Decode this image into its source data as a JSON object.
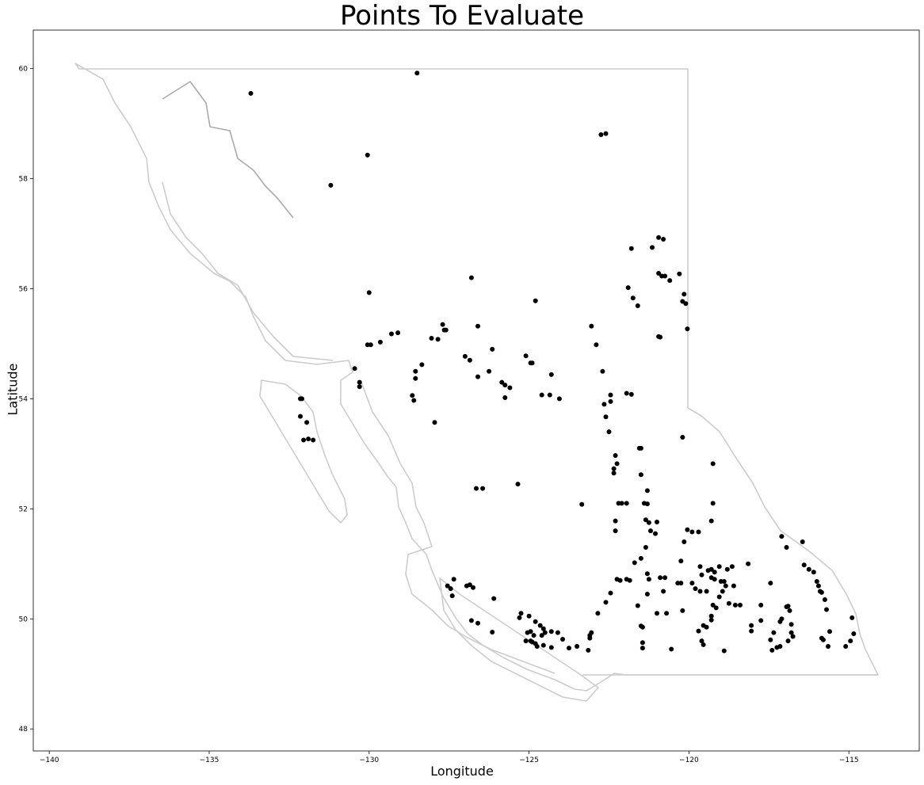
{
  "chart_data": {
    "type": "scatter",
    "title": "Points To Evaluate",
    "xlabel": "Longitude",
    "ylabel": "Latitude",
    "xlim": [
      -140.5,
      -112.8
    ],
    "ylim": [
      47.6,
      60.7
    ],
    "xticks": [
      -140,
      -135,
      -130,
      -125,
      -120,
      -115
    ],
    "yticks": [
      48,
      50,
      52,
      54,
      56,
      58,
      60
    ],
    "grid": false,
    "marker_color": "#000000",
    "basemap_color": "#cccccc",
    "points": [
      [
        -133.7,
        59.55
      ],
      [
        -128.5,
        59.92
      ],
      [
        -130.05,
        58.43
      ],
      [
        -131.2,
        57.88
      ],
      [
        -122.75,
        58.8
      ],
      [
        -122.6,
        58.82
      ],
      [
        -130.0,
        55.93
      ],
      [
        -129.95,
        54.98
      ],
      [
        -130.05,
        54.98
      ],
      [
        -129.65,
        55.03
      ],
      [
        -129.3,
        55.18
      ],
      [
        -129.1,
        55.2
      ],
      [
        -130.45,
        54.55
      ],
      [
        -130.3,
        54.3
      ],
      [
        -130.3,
        54.22
      ],
      [
        -132.15,
        54.0
      ],
      [
        -132.1,
        54.0
      ],
      [
        -132.15,
        53.68
      ],
      [
        -131.95,
        53.57
      ],
      [
        -132.05,
        53.25
      ],
      [
        -131.9,
        53.27
      ],
      [
        -131.75,
        53.25
      ],
      [
        -128.6,
        53.97
      ],
      [
        -128.65,
        54.06
      ],
      [
        -128.55,
        54.37
      ],
      [
        -128.55,
        54.5
      ],
      [
        -128.35,
        54.62
      ],
      [
        -127.95,
        53.57
      ],
      [
        -128.05,
        55.1
      ],
      [
        -127.85,
        55.08
      ],
      [
        -127.7,
        55.35
      ],
      [
        -127.65,
        55.25
      ],
      [
        -127.6,
        55.25
      ],
      [
        -127.0,
        54.77
      ],
      [
        -126.85,
        54.7
      ],
      [
        -126.8,
        56.2
      ],
      [
        -126.6,
        55.32
      ],
      [
        -126.6,
        54.4
      ],
      [
        -126.25,
        54.5
      ],
      [
        -126.15,
        54.9
      ],
      [
        -125.85,
        54.3
      ],
      [
        -125.75,
        54.25
      ],
      [
        -125.6,
        54.2
      ],
      [
        -125.75,
        54.02
      ],
      [
        -125.1,
        54.78
      ],
      [
        -124.95,
        54.65
      ],
      [
        -124.9,
        54.65
      ],
      [
        -124.8,
        55.78
      ],
      [
        -124.6,
        54.07
      ],
      [
        -124.35,
        54.07
      ],
      [
        -124.3,
        54.44
      ],
      [
        -124.05,
        54.0
      ],
      [
        -125.35,
        52.45
      ],
      [
        -126.65,
        52.37
      ],
      [
        -126.45,
        52.37
      ],
      [
        -123.35,
        52.08
      ],
      [
        -123.05,
        55.32
      ],
      [
        -122.9,
        54.98
      ],
      [
        -122.7,
        54.5
      ],
      [
        -122.65,
        53.9
      ],
      [
        -122.6,
        53.67
      ],
      [
        -122.45,
        53.95
      ],
      [
        -122.45,
        54.07
      ],
      [
        -122.5,
        53.4
      ],
      [
        -122.3,
        52.97
      ],
      [
        -122.35,
        52.73
      ],
      [
        -122.35,
        52.65
      ],
      [
        -122.25,
        52.82
      ],
      [
        -121.9,
        56.02
      ],
      [
        -121.8,
        56.73
      ],
      [
        -121.75,
        55.83
      ],
      [
        -121.6,
        55.69
      ],
      [
        -121.55,
        53.1
      ],
      [
        -121.5,
        53.1
      ],
      [
        -121.5,
        52.62
      ],
      [
        -121.3,
        52.33
      ],
      [
        -121.4,
        52.1
      ],
      [
        -121.3,
        52.09
      ],
      [
        -121.15,
        56.75
      ],
      [
        -120.95,
        56.93
      ],
      [
        -120.8,
        56.9
      ],
      [
        -120.95,
        56.28
      ],
      [
        -120.85,
        56.23
      ],
      [
        -120.75,
        56.23
      ],
      [
        -120.6,
        56.15
      ],
      [
        -120.95,
        55.13
      ],
      [
        -120.9,
        55.12
      ],
      [
        -120.3,
        56.27
      ],
      [
        -120.2,
        55.77
      ],
      [
        -120.15,
        55.9
      ],
      [
        -120.1,
        55.73
      ],
      [
        -120.05,
        55.27
      ],
      [
        -121.95,
        54.1
      ],
      [
        -121.8,
        54.08
      ],
      [
        -120.2,
        53.3
      ],
      [
        -121.35,
        51.8
      ],
      [
        -121.25,
        51.75
      ],
      [
        -121.2,
        51.6
      ],
      [
        -121.05,
        51.55
      ],
      [
        -121.0,
        51.76
      ],
      [
        -121.35,
        51.3
      ],
      [
        -121.5,
        51.1
      ],
      [
        -121.7,
        51.02
      ],
      [
        -121.85,
        50.7
      ],
      [
        -121.3,
        50.82
      ],
      [
        -121.25,
        50.72
      ],
      [
        -120.9,
        50.75
      ],
      [
        -120.75,
        50.75
      ],
      [
        -120.8,
        50.5
      ],
      [
        -121.3,
        50.45
      ],
      [
        -121.6,
        50.24
      ],
      [
        -121.5,
        49.87
      ],
      [
        -121.45,
        49.85
      ],
      [
        -121.45,
        49.57
      ],
      [
        -121.45,
        49.47
      ],
      [
        -121.0,
        50.1
      ],
      [
        -120.7,
        50.1
      ],
      [
        -120.55,
        49.45
      ],
      [
        -122.3,
        51.6
      ],
      [
        -122.3,
        51.78
      ],
      [
        -122.2,
        52.1
      ],
      [
        -122.1,
        52.1
      ],
      [
        -121.95,
        52.1
      ],
      [
        -122.25,
        50.72
      ],
      [
        -121.95,
        50.72
      ],
      [
        -120.35,
        50.65
      ],
      [
        -120.25,
        50.65
      ],
      [
        -120.2,
        50.15
      ],
      [
        -120.15,
        51.4
      ],
      [
        -120.05,
        51.62
      ],
      [
        -119.9,
        51.58
      ],
      [
        -119.7,
        51.58
      ],
      [
        -119.3,
        51.78
      ],
      [
        -119.25,
        52.1
      ],
      [
        -119.25,
        52.82
      ],
      [
        -120.25,
        51.05
      ],
      [
        -119.65,
        50.95
      ],
      [
        -119.6,
        50.8
      ],
      [
        -119.4,
        50.88
      ],
      [
        -119.3,
        50.9
      ],
      [
        -119.2,
        50.85
      ],
      [
        -119.05,
        50.95
      ],
      [
        -118.8,
        50.9
      ],
      [
        -118.65,
        50.95
      ],
      [
        -119.9,
        50.65
      ],
      [
        -119.8,
        50.55
      ],
      [
        -119.65,
        50.5
      ],
      [
        -119.45,
        50.5
      ],
      [
        -119.3,
        50.75
      ],
      [
        -119.2,
        50.72
      ],
      [
        -119.0,
        50.68
      ],
      [
        -118.9,
        50.68
      ],
      [
        -118.6,
        50.6
      ],
      [
        -118.95,
        50.5
      ],
      [
        -118.85,
        50.6
      ],
      [
        -119.05,
        50.4
      ],
      [
        -119.25,
        50.25
      ],
      [
        -119.15,
        50.2
      ],
      [
        -119.3,
        50.05
      ],
      [
        -119.3,
        49.98
      ],
      [
        -119.55,
        49.88
      ],
      [
        -119.45,
        49.85
      ],
      [
        -119.7,
        49.78
      ],
      [
        -119.6,
        49.6
      ],
      [
        -119.55,
        49.53
      ],
      [
        -118.9,
        49.42
      ],
      [
        -118.75,
        50.28
      ],
      [
        -118.55,
        50.25
      ],
      [
        -118.4,
        50.25
      ],
      [
        -118.15,
        51.0
      ],
      [
        -118.05,
        49.88
      ],
      [
        -118.05,
        49.78
      ],
      [
        -117.75,
        50.25
      ],
      [
        -117.75,
        49.97
      ],
      [
        -117.45,
        50.65
      ],
      [
        -117.45,
        49.62
      ],
      [
        -117.4,
        49.43
      ],
      [
        -117.25,
        49.48
      ],
      [
        -117.15,
        49.5
      ],
      [
        -117.35,
        49.75
      ],
      [
        -117.15,
        49.95
      ],
      [
        -117.1,
        50.0
      ],
      [
        -116.9,
        49.6
      ],
      [
        -116.8,
        49.75
      ],
      [
        -116.75,
        49.68
      ],
      [
        -116.8,
        49.9
      ],
      [
        -116.9,
        50.23
      ],
      [
        -116.85,
        50.15
      ],
      [
        -116.95,
        50.22
      ],
      [
        -117.1,
        51.5
      ],
      [
        -116.95,
        51.3
      ],
      [
        -116.45,
        51.4
      ],
      [
        -116.4,
        50.98
      ],
      [
        -116.25,
        50.9
      ],
      [
        -116.1,
        50.85
      ],
      [
        -116.0,
        50.68
      ],
      [
        -115.95,
        50.6
      ],
      [
        -115.9,
        50.5
      ],
      [
        -115.85,
        50.48
      ],
      [
        -115.75,
        50.35
      ],
      [
        -115.7,
        50.17
      ],
      [
        -115.6,
        49.77
      ],
      [
        -115.65,
        49.5
      ],
      [
        -115.85,
        49.65
      ],
      [
        -115.8,
        49.62
      ],
      [
        -114.9,
        50.02
      ],
      [
        -114.85,
        49.73
      ],
      [
        -114.95,
        49.6
      ],
      [
        -115.1,
        49.5
      ],
      [
        -127.35,
        50.72
      ],
      [
        -127.45,
        50.55
      ],
      [
        -127.55,
        50.6
      ],
      [
        -127.4,
        50.42
      ],
      [
        -126.95,
        50.6
      ],
      [
        -126.85,
        50.62
      ],
      [
        -126.75,
        50.57
      ],
      [
        -126.1,
        50.37
      ],
      [
        -126.8,
        49.97
      ],
      [
        -126.6,
        49.92
      ],
      [
        -126.15,
        49.76
      ],
      [
        -125.25,
        50.1
      ],
      [
        -125.3,
        50.02
      ],
      [
        -125.0,
        50.05
      ],
      [
        -124.8,
        49.95
      ],
      [
        -124.65,
        49.88
      ],
      [
        -124.55,
        49.82
      ],
      [
        -124.5,
        49.75
      ],
      [
        -124.6,
        49.7
      ],
      [
        -124.3,
        49.77
      ],
      [
        -124.1,
        49.75
      ],
      [
        -123.95,
        49.63
      ],
      [
        -124.95,
        49.77
      ],
      [
        -124.85,
        49.7
      ],
      [
        -124.95,
        49.6
      ],
      [
        -124.9,
        49.58
      ],
      [
        -124.8,
        49.55
      ],
      [
        -124.75,
        49.5
      ],
      [
        -124.55,
        49.52
      ],
      [
        -124.3,
        49.48
      ],
      [
        -125.05,
        49.75
      ],
      [
        -125.1,
        49.6
      ],
      [
        -123.75,
        49.47
      ],
      [
        -123.5,
        49.5
      ],
      [
        -123.1,
        49.65
      ],
      [
        -123.05,
        49.75
      ],
      [
        -123.15,
        49.43
      ],
      [
        -123.1,
        49.7
      ],
      [
        -122.85,
        50.1
      ],
      [
        -122.6,
        50.3
      ],
      [
        -122.45,
        50.47
      ],
      [
        -122.15,
        50.7
      ]
    ]
  },
  "basemap": {
    "description_label": "British Columbia boundary and coastline",
    "provinces": "BC"
  }
}
